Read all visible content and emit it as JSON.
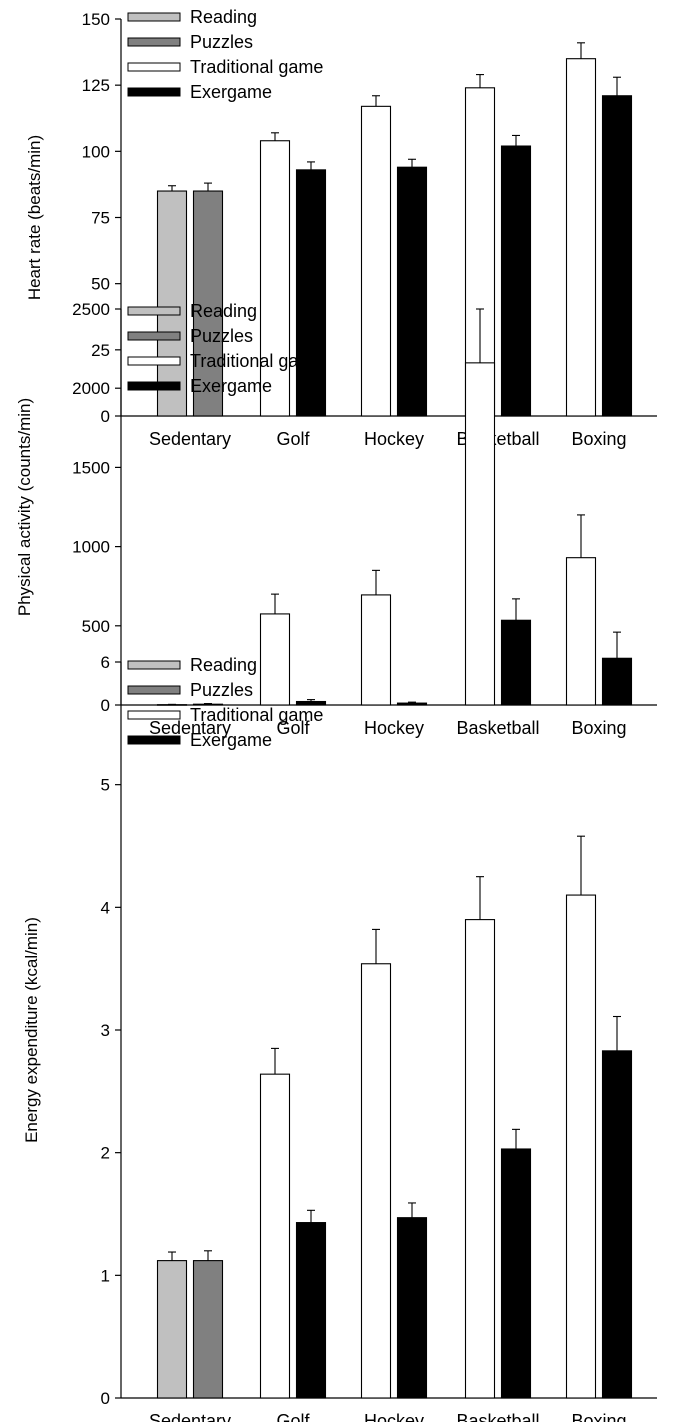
{
  "figure": {
    "legend": [
      "Reading",
      "Puzzles",
      "Traditional game",
      "Exergame"
    ]
  },
  "colors": {
    "Reading": "#c0c0c0",
    "Puzzles": "#808080",
    "Traditional game": "#ffffff",
    "Exergame": "#000000"
  },
  "chart_data": [
    {
      "type": "bar",
      "ylabel": "Heart rate (beats/min)",
      "ylim": [
        0,
        150
      ],
      "yticks": [
        0,
        25,
        50,
        75,
        100,
        125,
        150
      ],
      "legend_position": "top-left",
      "categories": [
        "Sedentary",
        "Golf",
        "Hockey",
        "Basketball",
        "Boxing"
      ],
      "series": [
        {
          "name": "Reading",
          "values": [
            85,
            null,
            null,
            null,
            null
          ],
          "errors": [
            2,
            null,
            null,
            null,
            null
          ]
        },
        {
          "name": "Puzzles",
          "values": [
            85,
            null,
            null,
            null,
            null
          ],
          "errors": [
            3,
            null,
            null,
            null,
            null
          ]
        },
        {
          "name": "Traditional game",
          "values": [
            null,
            104,
            117,
            124,
            135
          ],
          "errors": [
            null,
            3,
            4,
            5,
            6
          ]
        },
        {
          "name": "Exergame",
          "values": [
            null,
            93,
            94,
            102,
            121
          ],
          "errors": [
            null,
            3,
            3,
            4,
            7
          ]
        }
      ]
    },
    {
      "type": "bar",
      "ylabel": "Physical activity (counts/min)",
      "ylim": [
        0,
        2500
      ],
      "yticks": [
        0,
        500,
        1000,
        1500,
        2000,
        2500
      ],
      "legend_position": "top-left",
      "categories": [
        "Sedentary",
        "Golf",
        "Hockey",
        "Basketball",
        "Boxing"
      ],
      "series": [
        {
          "name": "Reading",
          "values": [
            2,
            null,
            null,
            null,
            null
          ],
          "errors": [
            2,
            null,
            null,
            null,
            null
          ]
        },
        {
          "name": "Puzzles",
          "values": [
            5,
            null,
            null,
            null,
            null
          ],
          "errors": [
            4,
            null,
            null,
            null,
            null
          ]
        },
        {
          "name": "Traditional game",
          "values": [
            null,
            575,
            695,
            2160,
            930
          ],
          "errors": [
            null,
            125,
            155,
            340,
            270
          ]
        },
        {
          "name": "Exergame",
          "values": [
            null,
            22,
            12,
            535,
            295
          ],
          "errors": [
            null,
            12,
            6,
            135,
            165
          ]
        }
      ]
    },
    {
      "type": "bar",
      "ylabel": "Energy expenditure (kcal/min)",
      "ylim": [
        0,
        6
      ],
      "yticks": [
        0,
        1,
        2,
        3,
        4,
        5,
        6
      ],
      "legend_position": "top-left",
      "categories": [
        "Sedentary",
        "Golf",
        "Hockey",
        "Basketball",
        "Boxing"
      ],
      "series": [
        {
          "name": "Reading",
          "values": [
            1.12,
            null,
            null,
            null,
            null
          ],
          "errors": [
            0.07,
            null,
            null,
            null,
            null
          ]
        },
        {
          "name": "Puzzles",
          "values": [
            1.12,
            null,
            null,
            null,
            null
          ],
          "errors": [
            0.08,
            null,
            null,
            null,
            null
          ]
        },
        {
          "name": "Traditional game",
          "values": [
            null,
            2.64,
            3.54,
            3.9,
            4.1
          ],
          "errors": [
            null,
            0.21,
            0.28,
            0.35,
            0.48
          ]
        },
        {
          "name": "Exergame",
          "values": [
            null,
            1.43,
            1.47,
            2.03,
            2.83
          ],
          "errors": [
            null,
            0.1,
            0.12,
            0.16,
            0.28
          ]
        }
      ]
    }
  ]
}
